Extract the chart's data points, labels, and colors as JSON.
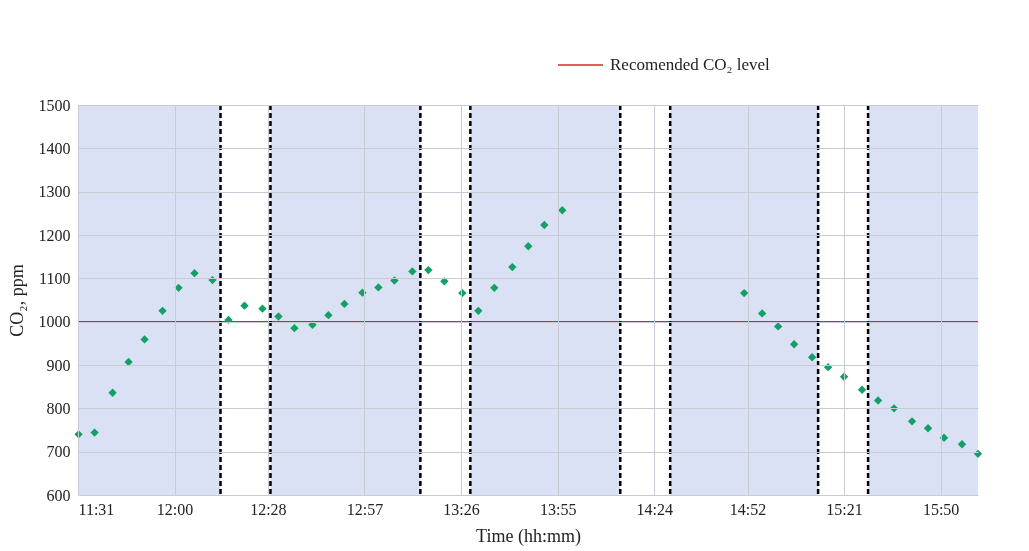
{
  "chart_data": {
    "type": "scatter",
    "xlabel": "Time (hh:mm)",
    "ylabel": "CO₂, ppm",
    "x": [
      11.52,
      11.6,
      11.69,
      11.77,
      11.85,
      11.94,
      12.02,
      12.1,
      12.19,
      12.27,
      12.35,
      12.44,
      12.52,
      12.6,
      12.69,
      12.77,
      12.85,
      12.94,
      13.02,
      13.1,
      13.19,
      13.27,
      13.35,
      13.44,
      13.52,
      13.6,
      13.69,
      13.77,
      13.85,
      13.94,
      14.85,
      14.94,
      15.02,
      15.1,
      15.19,
      15.27,
      15.35,
      15.44,
      15.52,
      15.6,
      15.69,
      15.77,
      15.85,
      15.94,
      16.02
    ],
    "series": [
      {
        "color": "#13a064",
        "values": [
          740,
          744,
          836,
          907,
          959,
          1025,
          1078,
          1112,
          1096,
          1004,
          1037,
          1030,
          1012,
          985,
          993,
          1015,
          1041,
          1067,
          1079,
          1095,
          1116,
          1119,
          1093,
          1066,
          1025,
          1078,
          1126,
          1174,
          1223,
          1257,
          1066,
          1019,
          989,
          948,
          918,
          895,
          873,
          843,
          818,
          800,
          770,
          754,
          732,
          717,
          695
        ]
      }
    ],
    "marker": "diamond",
    "xlim": [
      11.517,
      16.02
    ],
    "xticks": [
      {
        "value": 11.517,
        "label": "11:31"
      },
      {
        "value": 12.0,
        "label": "12:00"
      },
      {
        "value": 12.467,
        "label": "12:28"
      },
      {
        "value": 12.95,
        "label": "12:57"
      },
      {
        "value": 13.433,
        "label": "13:26"
      },
      {
        "value": 13.917,
        "label": "13:55"
      },
      {
        "value": 14.4,
        "label": "14:24"
      },
      {
        "value": 14.867,
        "label": "14:52"
      },
      {
        "value": 15.35,
        "label": "15:21"
      },
      {
        "value": 15.833,
        "label": "15:50"
      }
    ],
    "ylim": [
      600,
      1500
    ],
    "yticks": [
      600,
      700,
      800,
      900,
      1000,
      1100,
      1200,
      1300,
      1400,
      1500
    ],
    "grid": true,
    "bands": [
      {
        "axis": "x",
        "from": 11.517,
        "to": 12.23,
        "color": "#dae1f4"
      },
      {
        "axis": "x",
        "from": 12.48,
        "to": 13.23,
        "color": "#dae1f4"
      },
      {
        "axis": "x",
        "from": 13.48,
        "to": 14.23,
        "color": "#dae1f4"
      },
      {
        "axis": "x",
        "from": 14.48,
        "to": 15.22,
        "color": "#dae1f4"
      },
      {
        "axis": "x",
        "from": 15.47,
        "to": 16.02,
        "color": "#dae1f4"
      }
    ],
    "ref_lines": [
      {
        "axis": "y",
        "value": 1000,
        "label": "Recomended CO₂ level",
        "color": "#d42a2a",
        "line_style": "solid"
      },
      {
        "axis": "x",
        "value": 12.23,
        "color": "#000000",
        "line_style": "dashed"
      },
      {
        "axis": "x",
        "value": 12.48,
        "color": "#000000",
        "line_style": "dashed"
      },
      {
        "axis": "x",
        "value": 13.23,
        "color": "#000000",
        "line_style": "dashed"
      },
      {
        "axis": "x",
        "value": 13.48,
        "color": "#000000",
        "line_style": "dashed"
      },
      {
        "axis": "x",
        "value": 14.23,
        "color": "#000000",
        "line_style": "dashed"
      },
      {
        "axis": "x",
        "value": 14.48,
        "color": "#000000",
        "line_style": "dashed"
      },
      {
        "axis": "x",
        "value": 15.22,
        "color": "#000000",
        "line_style": "dashed"
      },
      {
        "axis": "x",
        "value": 15.47,
        "color": "#000000",
        "line_style": "dashed"
      }
    ]
  }
}
